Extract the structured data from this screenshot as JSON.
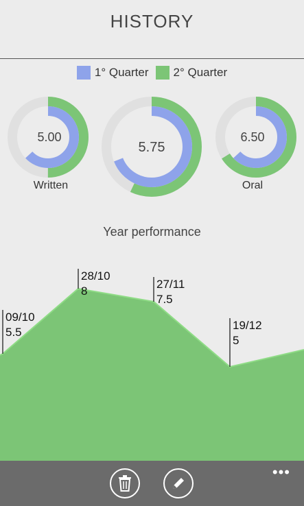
{
  "header": {
    "title": "HISTORY"
  },
  "legend": [
    {
      "label": "1° Quarter",
      "color": "#8ea3ea"
    },
    {
      "label": "2° Quarter",
      "color": "#7cc576"
    }
  ],
  "donuts": [
    {
      "name": "written",
      "label": "Written",
      "value": "5.00",
      "q1_fraction": 0.63,
      "q2_fraction": 0.5
    },
    {
      "name": "total",
      "label": "",
      "value": "5.75",
      "q1_fraction": 0.69,
      "q2_fraction": 0.57
    },
    {
      "name": "oral",
      "label": "Oral",
      "value": "6.50",
      "q1_fraction": 0.63,
      "q2_fraction": 0.66
    }
  ],
  "performance": {
    "title": "Year performance"
  },
  "chart_data": {
    "type": "area",
    "title": "Year performance",
    "x": [
      "09/10",
      "28/10",
      "27/11",
      "19/12"
    ],
    "series": [
      {
        "values": [
          5.5,
          8,
          7.5,
          5
        ]
      }
    ],
    "point_labels": [
      {
        "date": "09/10",
        "value": "5.5"
      },
      {
        "date": "28/10",
        "value": "8"
      },
      {
        "date": "27/11",
        "value": "7.5"
      },
      {
        "date": "19/12",
        "value": "5"
      }
    ],
    "area_color": "#7cc576"
  },
  "appbar": {
    "icons": [
      "trash-icon",
      "pencil-icon"
    ],
    "more": "•••"
  }
}
